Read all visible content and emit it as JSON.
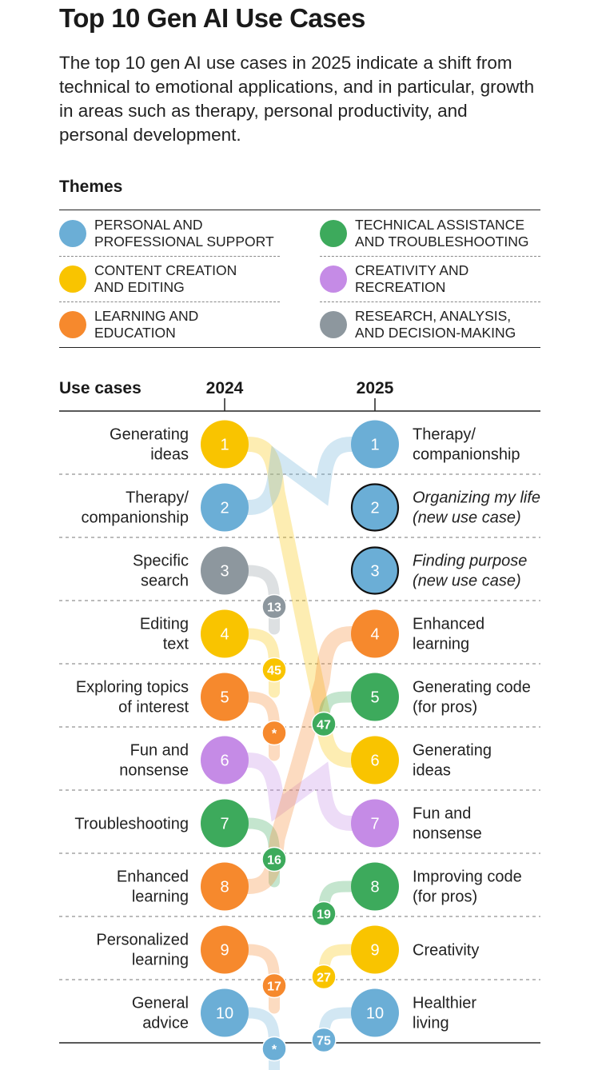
{
  "title": "Top 10 Gen AI Use Cases",
  "subtitle": "The top 10 gen AI use cases in 2025 indicate a shift from technical to emotional applications, and in particular, growth in areas such as therapy, personal productivity, and personal development.",
  "themes": {
    "heading": "Themes",
    "items": [
      {
        "label": "PERSONAL AND\nPROFESSIONAL SUPPORT",
        "color": "#6BAED6"
      },
      {
        "label": "TECHNICAL ASSISTANCE\nAND TROUBLESHOOTING",
        "color": "#3DAA5C"
      },
      {
        "label": "CONTENT CREATION\nAND EDITING",
        "color": "#F9C400"
      },
      {
        "label": "CREATIVITY AND\nRECREATION",
        "color": "#C58BE6"
      },
      {
        "label": "LEARNING AND\nEDUCATION",
        "color": "#F6892D"
      },
      {
        "label": "RESEARCH, ANALYSIS,\nAND DECISION-MAKING",
        "color": "#8D979E"
      }
    ]
  },
  "chart_data": {
    "type": "slope",
    "header_label": "Use cases",
    "year_left": "2024",
    "year_right": "2025",
    "left": [
      {
        "rank": "1",
        "label": [
          "Generating",
          "ideas"
        ],
        "theme": "content",
        "new_rank": "6"
      },
      {
        "rank": "2",
        "label": [
          "Therapy/",
          "companionship"
        ],
        "theme": "personal",
        "new_rank": "1"
      },
      {
        "rank": "3",
        "label": [
          "Specific",
          "search"
        ],
        "theme": "research",
        "new_rank": "13"
      },
      {
        "rank": "4",
        "label": [
          "Editing",
          "text"
        ],
        "theme": "content",
        "new_rank": "45"
      },
      {
        "rank": "5",
        "label": [
          "Exploring topics",
          "of interest"
        ],
        "theme": "learning",
        "new_rank": "*"
      },
      {
        "rank": "6",
        "label": [
          "Fun and",
          "nonsense"
        ],
        "theme": "creativity",
        "new_rank": "7"
      },
      {
        "rank": "7",
        "label": [
          "Troubleshooting"
        ],
        "theme": "technical",
        "new_rank": "16"
      },
      {
        "rank": "8",
        "label": [
          "Enhanced",
          "learning"
        ],
        "theme": "learning",
        "new_rank": "4"
      },
      {
        "rank": "9",
        "label": [
          "Personalized",
          "learning"
        ],
        "theme": "learning",
        "new_rank": "17"
      },
      {
        "rank": "10",
        "label": [
          "General",
          "advice"
        ],
        "theme": "personal",
        "new_rank": "*"
      }
    ],
    "right": [
      {
        "rank": "1",
        "label": [
          "Therapy/",
          "companionship"
        ],
        "theme": "personal",
        "prev_rank": "2",
        "is_new": false
      },
      {
        "rank": "2",
        "label": [
          "Organizing my life",
          "(new use case)"
        ],
        "theme": "personal",
        "prev_rank": "",
        "is_new": true
      },
      {
        "rank": "3",
        "label": [
          "Finding purpose",
          "(new use case)"
        ],
        "theme": "personal",
        "prev_rank": "",
        "is_new": true
      },
      {
        "rank": "4",
        "label": [
          "Enhanced",
          "learning"
        ],
        "theme": "learning",
        "prev_rank": "8",
        "is_new": false
      },
      {
        "rank": "5",
        "label": [
          "Generating code",
          "(for pros)"
        ],
        "theme": "technical",
        "prev_rank": "47",
        "is_new": false
      },
      {
        "rank": "6",
        "label": [
          "Generating",
          "ideas"
        ],
        "theme": "content",
        "prev_rank": "1",
        "is_new": false
      },
      {
        "rank": "7",
        "label": [
          "Fun and",
          "nonsense"
        ],
        "theme": "creativity",
        "prev_rank": "6",
        "is_new": false
      },
      {
        "rank": "8",
        "label": [
          "Improving code",
          "(for pros)"
        ],
        "theme": "technical",
        "prev_rank": "19",
        "is_new": false
      },
      {
        "rank": "9",
        "label": [
          "Creativity"
        ],
        "theme": "content",
        "prev_rank": "27",
        "is_new": false
      },
      {
        "rank": "10",
        "label": [
          "Healthier",
          "living"
        ],
        "theme": "personal",
        "prev_rank": "75",
        "is_new": false
      }
    ],
    "theme_colors": {
      "personal": "#6BAED6",
      "technical": "#3DAA5C",
      "content": "#F9C400",
      "creativity": "#C58BE6",
      "learning": "#F6892D",
      "research": "#8D979E"
    },
    "new_fill": "#6BAED6"
  }
}
